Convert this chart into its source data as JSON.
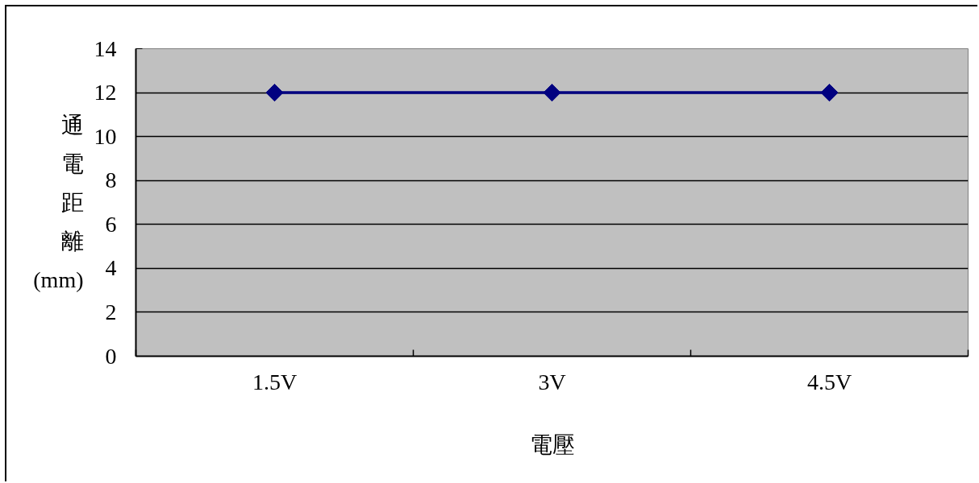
{
  "chart_data": {
    "type": "line",
    "xlabel": "電壓",
    "ylabel": "通電距離(mm)",
    "categories": [
      "1.5V",
      "3V",
      "4.5V"
    ],
    "series": [
      {
        "color": "#000080",
        "values": [
          12,
          12,
          12
        ]
      }
    ],
    "ylim": [
      0,
      14
    ],
    "yticks": [
      0,
      2,
      4,
      6,
      8,
      10,
      12,
      14
    ],
    "grid": "y",
    "marker": "diamond"
  }
}
